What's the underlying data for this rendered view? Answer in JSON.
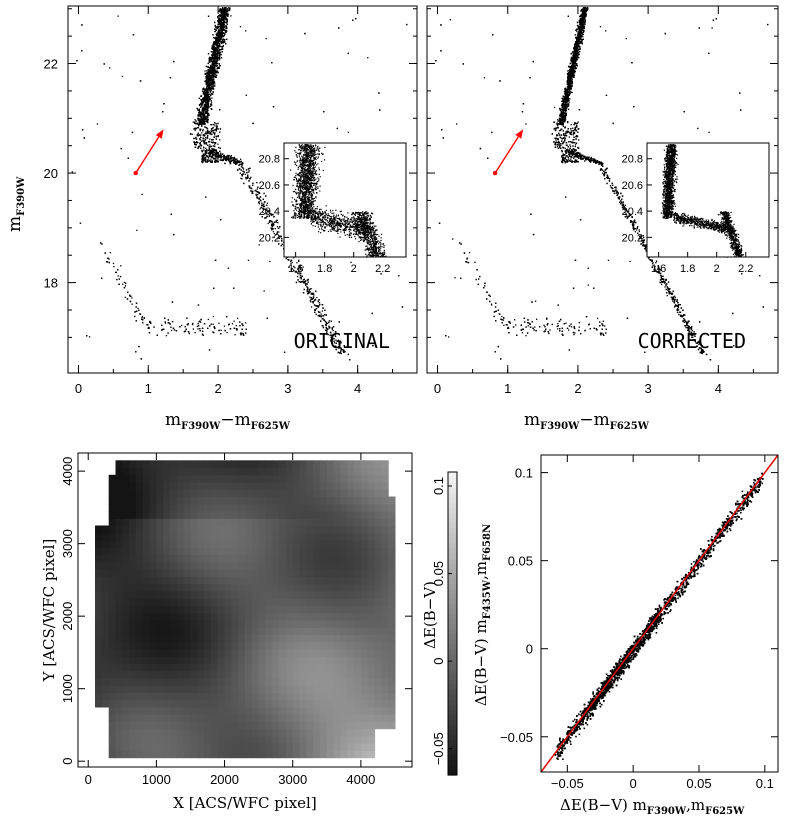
{
  "chart_data": [
    {
      "type": "scatter",
      "panel_label": "ORIGINAL",
      "xlabel": "m_F390W - m_F625W",
      "ylabel": "m_F390W",
      "xlim": [
        -0.15,
        4.85
      ],
      "ylim": [
        23.05,
        16.35
      ],
      "xticks": [
        "0",
        "1",
        "2",
        "3",
        "4"
      ],
      "yticks": [
        "18",
        "20",
        "22"
      ],
      "reddening_vector": {
        "from": [
          0.82,
          20.0
        ],
        "to": [
          1.22,
          20.8
        ],
        "color": "#ff0000"
      },
      "inset": {
        "xlim": [
          1.52,
          2.36
        ],
        "ylim": [
          20.92,
          20.05
        ],
        "xticks": [
          "1.6",
          "1.8",
          "2",
          "2.2"
        ],
        "yticks": [
          "20.2",
          "20.4",
          "20.6",
          "20.8"
        ]
      }
    },
    {
      "type": "scatter",
      "panel_label": "CORRECTED",
      "xlabel": "m_F390W - m_F625W",
      "xlim": [
        -0.15,
        4.85
      ],
      "ylim": [
        23.05,
        16.35
      ],
      "xticks": [
        "0",
        "1",
        "2",
        "3",
        "4"
      ],
      "reddening_vector": {
        "from": [
          0.82,
          20.0
        ],
        "to": [
          1.22,
          20.8
        ],
        "color": "#ff0000"
      },
      "inset": {
        "xlim": [
          1.52,
          2.36
        ],
        "ylim": [
          20.92,
          20.05
        ],
        "xticks": [
          "1.6",
          "1.8",
          "2",
          "2.2"
        ],
        "yticks": [
          "20.2",
          "20.4",
          "20.6",
          "20.8"
        ]
      }
    },
    {
      "type": "heatmap",
      "xlabel": "X [ACS/WFC pixel]",
      "ylabel": "Y [ACS/WFC pixel]",
      "xlim": [
        -150,
        4750
      ],
      "ylim": [
        -80,
        4250
      ],
      "xticks": [
        "0",
        "1000",
        "2000",
        "3000",
        "4000"
      ],
      "yticks": [
        "0",
        "1000",
        "2000",
        "3000",
        "4000"
      ],
      "colorbar": {
        "label": "ΔE(B−V)",
        "range": [
          -0.065,
          0.108
        ],
        "ticks": [
          "−0.05",
          "0",
          "0.05",
          "0.1"
        ]
      }
    },
    {
      "type": "scatter",
      "xlabel": "ΔE(B−V) m_F390W,m_F625W",
      "ylabel": "ΔE(B−V) m_F435W,m_F658N",
      "xlim": [
        -0.07,
        0.11
      ],
      "ylim": [
        -0.07,
        0.11
      ],
      "xticks": [
        "−0.05",
        "0",
        "0.05",
        "0.1"
      ],
      "yticks": [
        "−0.05",
        "0",
        "0.05",
        "0.1"
      ],
      "fit_line": {
        "slope": 1,
        "intercept": 0,
        "color": "#e00000"
      }
    }
  ],
  "labels": {
    "cmd_ylabel_main": "m",
    "cmd_ylabel_sub": "F390W",
    "cmd_xlabel_m1": "m",
    "cmd_xlabel_sub1": "F390W",
    "cmd_xlabel_minus": "−m",
    "cmd_xlabel_sub2": "F625W",
    "tag_original": "ORIGINAL",
    "tag_corrected": "CORRECTED",
    "map_xlabel": "X [ACS/WFC pixel]",
    "map_ylabel": "Y [ACS/WFC pixel]",
    "cbar_label": "ΔE(B−V)",
    "cmp_ylabel_main": "ΔE(B−V) m",
    "cmp_ylabel_sub1": "F435W",
    "cmp_ylabel_comma": ",m",
    "cmp_ylabel_sub2": "F658N",
    "cmp_xlabel_main": "ΔE(B−V) m",
    "cmp_xlabel_sub1": "F390W",
    "cmp_xlabel_comma": ",m",
    "cmp_xlabel_sub2": "F625W"
  }
}
